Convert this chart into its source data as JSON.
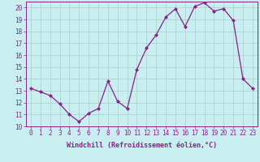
{
  "x": [
    0,
    1,
    2,
    3,
    4,
    5,
    6,
    7,
    8,
    9,
    10,
    11,
    12,
    13,
    14,
    15,
    16,
    17,
    18,
    19,
    20,
    21,
    22,
    23
  ],
  "y": [
    13.2,
    12.9,
    12.6,
    11.9,
    11.0,
    10.4,
    11.1,
    11.5,
    13.8,
    12.1,
    11.5,
    14.8,
    16.6,
    17.7,
    19.2,
    19.9,
    18.4,
    20.1,
    20.4,
    19.7,
    19.9,
    18.9,
    14.0,
    13.2
  ],
  "line_color": "#882288",
  "bg_color": "#c8eef0",
  "grid_color": "#aacccc",
  "xlabel": "Windchill (Refroidissement éolien,°C)",
  "ylim": [
    10,
    20.5
  ],
  "xlim_min": -0.5,
  "xlim_max": 23.5,
  "yticks": [
    10,
    11,
    12,
    13,
    14,
    15,
    16,
    17,
    18,
    19,
    20
  ],
  "xticks": [
    0,
    1,
    2,
    3,
    4,
    5,
    6,
    7,
    8,
    9,
    10,
    11,
    12,
    13,
    14,
    15,
    16,
    17,
    18,
    19,
    20,
    21,
    22,
    23
  ],
  "tick_fontsize": 5.5,
  "xlabel_fontsize": 6.0,
  "marker": "D",
  "marker_size": 2.0,
  "line_width": 0.9
}
